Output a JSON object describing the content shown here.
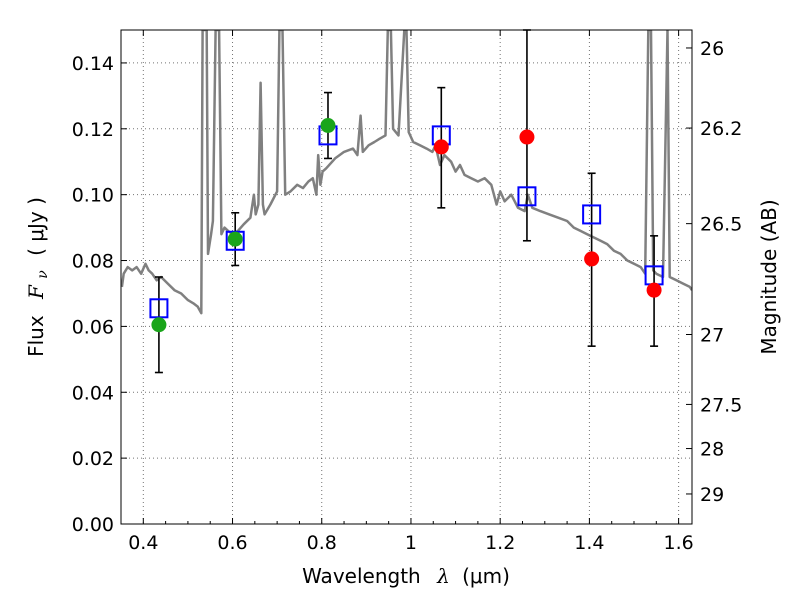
{
  "chart_data": {
    "type": "scatter",
    "title": "",
    "xlabel": "Wavelength",
    "xlabel_symbol": "λ",
    "xlabel_unit": "(μm)",
    "ylabel": "Flux",
    "ylabel_symbol": "F",
    "ylabel_sub": "ν",
    "ylabel_unit": "( μJy )",
    "y2label": "Magnitude (AB)",
    "xlim": [
      0.35,
      1.63
    ],
    "ylim": [
      0,
      0.15
    ],
    "grid": true,
    "x_ticks": [
      {
        "value": 0.4,
        "label": "0.4"
      },
      {
        "value": 0.6,
        "label": "0.6"
      },
      {
        "value": 0.8,
        "label": "0.8"
      },
      {
        "value": 1.0,
        "label": "1"
      },
      {
        "value": 1.2,
        "label": "1.2"
      },
      {
        "value": 1.4,
        "label": "1.4"
      },
      {
        "value": 1.6,
        "label": "1.6"
      }
    ],
    "y_ticks": [
      {
        "value": 0.0,
        "label": "0.00"
      },
      {
        "value": 0.02,
        "label": "0.02"
      },
      {
        "value": 0.04,
        "label": "0.04"
      },
      {
        "value": 0.06,
        "label": "0.06"
      },
      {
        "value": 0.08,
        "label": "0.08"
      },
      {
        "value": 0.1,
        "label": "0.10"
      },
      {
        "value": 0.12,
        "label": "0.12"
      },
      {
        "value": 0.14,
        "label": "0.14"
      }
    ],
    "y2_ticks": [
      {
        "value": 26,
        "label": "26"
      },
      {
        "value": 26.2,
        "label": "26.2"
      },
      {
        "value": 26.5,
        "label": "26.5"
      },
      {
        "value": 27,
        "label": "27"
      },
      {
        "value": 27.5,
        "label": "27.5"
      },
      {
        "value": 28,
        "label": "28"
      },
      {
        "value": 29,
        "label": "29"
      }
    ],
    "model_spectrum": {
      "color": "#808080",
      "points": [
        [
          0.352,
          0.072
        ],
        [
          0.356,
          0.076
        ],
        [
          0.365,
          0.078
        ],
        [
          0.375,
          0.077
        ],
        [
          0.385,
          0.078
        ],
        [
          0.395,
          0.076
        ],
        [
          0.405,
          0.079
        ],
        [
          0.412,
          0.077
        ],
        [
          0.42,
          0.076
        ],
        [
          0.43,
          0.074
        ],
        [
          0.44,
          0.075
        ],
        [
          0.455,
          0.073
        ],
        [
          0.47,
          0.071
        ],
        [
          0.485,
          0.07
        ],
        [
          0.5,
          0.068
        ],
        [
          0.512,
          0.067
        ],
        [
          0.522,
          0.066
        ],
        [
          0.53,
          0.064
        ],
        [
          0.533,
          0.15
        ],
        [
          0.542,
          0.15
        ],
        [
          0.545,
          0.082
        ],
        [
          0.552,
          0.088
        ],
        [
          0.556,
          0.092
        ],
        [
          0.562,
          0.15
        ],
        [
          0.57,
          0.15
        ],
        [
          0.575,
          0.088
        ],
        [
          0.582,
          0.09
        ],
        [
          0.59,
          0.089
        ],
        [
          0.6,
          0.088
        ],
        [
          0.612,
          0.089
        ],
        [
          0.625,
          0.091
        ],
        [
          0.64,
          0.093
        ],
        [
          0.648,
          0.1
        ],
        [
          0.652,
          0.094
        ],
        [
          0.658,
          0.097
        ],
        [
          0.663,
          0.134
        ],
        [
          0.668,
          0.097
        ],
        [
          0.672,
          0.094
        ],
        [
          0.685,
          0.097
        ],
        [
          0.7,
          0.101
        ],
        [
          0.705,
          0.15
        ],
        [
          0.712,
          0.15
        ],
        [
          0.718,
          0.1
        ],
        [
          0.73,
          0.101
        ],
        [
          0.745,
          0.103
        ],
        [
          0.758,
          0.102
        ],
        [
          0.77,
          0.104
        ],
        [
          0.78,
          0.105
        ],
        [
          0.788,
          0.1
        ],
        [
          0.792,
          0.112
        ],
        [
          0.797,
          0.103
        ],
        [
          0.802,
          0.107
        ],
        [
          0.81,
          0.108
        ],
        [
          0.83,
          0.111
        ],
        [
          0.85,
          0.113
        ],
        [
          0.87,
          0.114
        ],
        [
          0.88,
          0.112
        ],
        [
          0.887,
          0.124
        ],
        [
          0.892,
          0.113
        ],
        [
          0.905,
          0.115
        ],
        [
          0.918,
          0.116
        ],
        [
          0.93,
          0.117
        ],
        [
          0.943,
          0.118
        ],
        [
          0.948,
          0.15
        ],
        [
          0.955,
          0.15
        ],
        [
          0.96,
          0.12
        ],
        [
          0.972,
          0.118
        ],
        [
          0.985,
          0.15
        ],
        [
          0.99,
          0.15
        ],
        [
          0.995,
          0.119
        ],
        [
          1.005,
          0.116
        ],
        [
          1.02,
          0.115
        ],
        [
          1.035,
          0.114
        ],
        [
          1.048,
          0.113
        ],
        [
          1.055,
          0.115
        ],
        [
          1.065,
          0.109
        ],
        [
          1.075,
          0.112
        ],
        [
          1.09,
          0.11
        ],
        [
          1.1,
          0.107
        ],
        [
          1.11,
          0.109
        ],
        [
          1.12,
          0.106
        ],
        [
          1.135,
          0.105
        ],
        [
          1.15,
          0.104
        ],
        [
          1.165,
          0.105
        ],
        [
          1.18,
          0.103
        ],
        [
          1.192,
          0.097
        ],
        [
          1.2,
          0.101
        ],
        [
          1.21,
          0.098
        ],
        [
          1.225,
          0.1
        ],
        [
          1.24,
          0.096
        ],
        [
          1.255,
          0.095
        ],
        [
          1.262,
          0.1
        ],
        [
          1.272,
          0.096
        ],
        [
          1.29,
          0.095
        ],
        [
          1.31,
          0.094
        ],
        [
          1.33,
          0.093
        ],
        [
          1.35,
          0.092
        ],
        [
          1.365,
          0.09
        ],
        [
          1.38,
          0.089
        ],
        [
          1.395,
          0.088
        ],
        [
          1.41,
          0.087
        ],
        [
          1.425,
          0.086
        ],
        [
          1.44,
          0.085
        ],
        [
          1.455,
          0.083
        ],
        [
          1.47,
          0.082
        ],
        [
          1.485,
          0.08
        ],
        [
          1.5,
          0.079
        ],
        [
          1.515,
          0.078
        ],
        [
          1.525,
          0.076
        ],
        [
          1.532,
          0.15
        ],
        [
          1.538,
          0.15
        ],
        [
          1.543,
          0.077
        ],
        [
          1.55,
          0.076
        ],
        [
          1.565,
          0.075
        ],
        [
          1.575,
          0.15
        ],
        [
          1.58,
          0.075
        ],
        [
          1.595,
          0.074
        ],
        [
          1.61,
          0.073
        ],
        [
          1.625,
          0.072
        ],
        [
          1.63,
          0.071
        ]
      ]
    },
    "series": [
      {
        "marker": "circle",
        "color": "#1aa51a",
        "points": [
          {
            "x": 0.435,
            "y": 0.0605
          },
          {
            "x": 0.606,
            "y": 0.0865
          },
          {
            "x": 0.814,
            "y": 0.121
          }
        ]
      },
      {
        "marker": "circle",
        "color": "#ff0000",
        "points": [
          {
            "x": 1.068,
            "y": 0.1145
          },
          {
            "x": 1.26,
            "y": 0.1175
          },
          {
            "x": 1.405,
            "y": 0.0805
          },
          {
            "x": 1.545,
            "y": 0.071
          }
        ]
      },
      {
        "marker": "open-square",
        "color": "#0000ff",
        "points": [
          {
            "x": 0.435,
            "y": 0.0655
          },
          {
            "x": 0.606,
            "y": 0.086
          },
          {
            "x": 0.814,
            "y": 0.118
          },
          {
            "x": 1.068,
            "y": 0.118
          },
          {
            "x": 1.26,
            "y": 0.0995
          },
          {
            "x": 1.405,
            "y": 0.094
          },
          {
            "x": 1.545,
            "y": 0.0755
          }
        ]
      }
    ],
    "error_bars": [
      {
        "x": 0.435,
        "low": 0.046,
        "high": 0.075
      },
      {
        "x": 0.606,
        "low": 0.0785,
        "high": 0.0945
      },
      {
        "x": 0.814,
        "low": 0.111,
        "high": 0.131
      },
      {
        "x": 1.068,
        "low": 0.096,
        "high": 0.1325
      },
      {
        "x": 1.26,
        "low": 0.086,
        "high": 0.15
      },
      {
        "x": 1.405,
        "low": 0.054,
        "high": 0.1065
      },
      {
        "x": 1.545,
        "low": 0.054,
        "high": 0.0875
      }
    ]
  }
}
